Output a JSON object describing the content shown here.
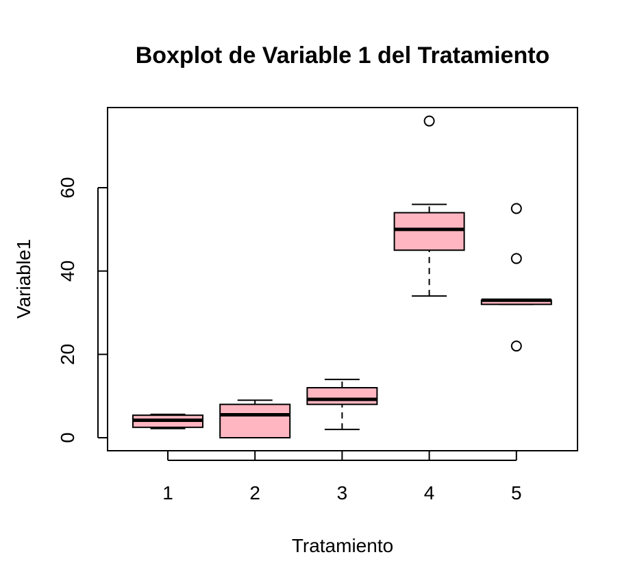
{
  "chart_data": {
    "type": "boxplot",
    "title": "Boxplot de Variable 1 del Tratamiento",
    "xlabel": "Tratamiento",
    "ylabel": "Variable1",
    "categories": [
      "1",
      "2",
      "3",
      "4",
      "5"
    ],
    "yticks": [
      0,
      20,
      40,
      60
    ],
    "ylim": [
      -3,
      79
    ],
    "box_fill": "#ffb6c1",
    "line_color": "#000000",
    "boxes": [
      {
        "category": "1",
        "whisker_low": 2.2,
        "q1": 2.5,
        "median": 4.2,
        "q3": 5.4,
        "whisker_high": 5.6,
        "outliers": []
      },
      {
        "category": "2",
        "whisker_low": 0,
        "q1": 0,
        "median": 5.5,
        "q3": 8,
        "whisker_high": 9,
        "outliers": []
      },
      {
        "category": "3",
        "whisker_low": 2,
        "q1": 8,
        "median": 9.2,
        "q3": 12,
        "whisker_high": 14,
        "outliers": []
      },
      {
        "category": "4",
        "whisker_low": 34,
        "q1": 45,
        "median": 50,
        "q3": 54,
        "whisker_high": 56,
        "outliers": [
          76
        ]
      },
      {
        "category": "5",
        "whisker_low": 32,
        "q1": 32,
        "median": 33,
        "q3": 33,
        "whisker_high": 33,
        "outliers": [
          55,
          43,
          22
        ]
      }
    ]
  }
}
